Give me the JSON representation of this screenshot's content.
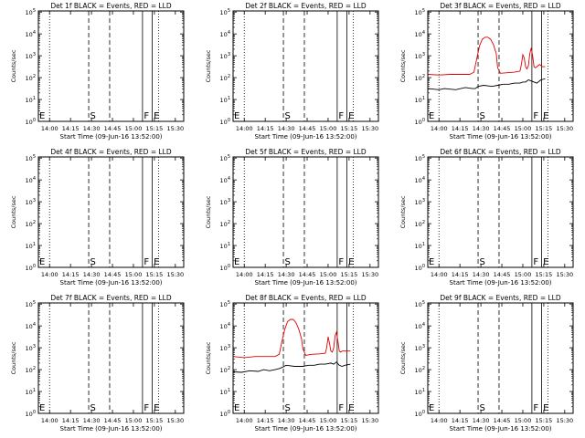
{
  "figure": {
    "background": "#ffffff",
    "frame_color": "#000000"
  },
  "common": {
    "ylabel": "Counts/sec",
    "xlabel": "Start Time (09-Jun-16 13:52:00)",
    "x_ticks": [
      {
        "t": 8,
        "label": "14:00"
      },
      {
        "t": 23,
        "label": "14:15"
      },
      {
        "t": 38,
        "label": "14:30"
      },
      {
        "t": 53,
        "label": "14:45"
      },
      {
        "t": 68,
        "label": "15:00"
      },
      {
        "t": 83,
        "label": "15:15"
      },
      {
        "t": 98,
        "label": "15:30"
      }
    ],
    "xlim": [
      0,
      104
    ],
    "y_tick_exponents": [
      0,
      1,
      2,
      3,
      4,
      5
    ],
    "y_tick_base": "10",
    "ylim_log10": [
      0,
      5.05
    ],
    "y_scale": "log",
    "vlines": [
      {
        "t": 8,
        "style": "dotted",
        "label": "E"
      },
      {
        "t": 36,
        "style": "dashed",
        "label": "S"
      },
      {
        "t": 51,
        "style": "dashed",
        "label": ""
      },
      {
        "t": 74.5,
        "style": "solid",
        "label": "F"
      },
      {
        "t": 81.5,
        "style": "solid",
        "label": "E"
      },
      {
        "t": 86,
        "style": "dotted",
        "label": ""
      }
    ],
    "series_colors": {
      "Events": "#000000",
      "LLD": "#e00000"
    }
  },
  "chart_data": [
    {
      "type": "line",
      "title": "Det 1f BLACK = Events, RED = LLD",
      "series": []
    },
    {
      "type": "line",
      "title": "Det 2f BLACK = Events, RED = LLD",
      "series": []
    },
    {
      "type": "line",
      "title": "Det 3f BLACK = Events, RED = LLD",
      "series": [
        {
          "name": "Events",
          "x": [
            0,
            8,
            12,
            20,
            27,
            32,
            34,
            36,
            40,
            46,
            50,
            54,
            58,
            62,
            66,
            68,
            70,
            72,
            74,
            76,
            78,
            81,
            84
          ],
          "y_log10": [
            1.5,
            1.45,
            1.5,
            1.45,
            1.55,
            1.5,
            1.5,
            1.6,
            1.65,
            1.6,
            1.65,
            1.7,
            1.7,
            1.75,
            1.75,
            1.8,
            1.8,
            1.9,
            1.85,
            1.8,
            1.75,
            1.9,
            1.95
          ]
        },
        {
          "name": "LLD",
          "x": [
            0,
            8,
            16,
            24,
            30,
            33,
            35,
            37,
            39,
            41,
            43,
            45,
            47,
            49,
            50,
            52,
            56,
            62,
            66,
            67,
            68,
            69,
            70,
            71,
            72,
            73,
            74,
            75,
            76,
            77,
            78,
            79,
            80,
            81,
            82,
            84
          ],
          "y_log10": [
            2.15,
            2.12,
            2.15,
            2.15,
            2.15,
            2.25,
            2.85,
            3.45,
            3.75,
            3.85,
            3.85,
            3.75,
            3.5,
            3.1,
            2.45,
            2.2,
            2.22,
            2.25,
            2.3,
            2.6,
            3.05,
            2.9,
            2.5,
            2.4,
            2.55,
            3.1,
            3.35,
            3.0,
            2.5,
            2.45,
            2.5,
            2.55,
            2.6,
            2.55,
            2.5,
            2.5
          ]
        }
      ]
    },
    {
      "type": "line",
      "title": "Det 4f BLACK = Events, RED = LLD",
      "series": []
    },
    {
      "type": "line",
      "title": "Det 5f BLACK = Events, RED = LLD",
      "series": []
    },
    {
      "type": "line",
      "title": "Det 6f BLACK = Events, RED = LLD",
      "series": []
    },
    {
      "type": "line",
      "title": "Det 7f BLACK = Events, RED = LLD",
      "series": []
    },
    {
      "type": "line",
      "title": "Det 8f BLACK = Events, RED = LLD",
      "series": [
        {
          "name": "Events",
          "x": [
            0,
            6,
            12,
            18,
            22,
            26,
            30,
            33,
            35,
            38,
            44,
            50,
            54,
            58,
            62,
            66,
            70,
            72,
            74,
            76,
            78,
            80,
            84
          ],
          "y_log10": [
            1.9,
            1.88,
            1.95,
            1.92,
            2.0,
            1.95,
            2.0,
            2.05,
            2.1,
            2.2,
            2.15,
            2.15,
            2.2,
            2.2,
            2.25,
            2.25,
            2.3,
            2.25,
            2.35,
            2.2,
            2.15,
            2.2,
            2.25
          ]
        },
        {
          "name": "LLD",
          "x": [
            0,
            8,
            16,
            24,
            30,
            33,
            35,
            37,
            39,
            41,
            43,
            45,
            47,
            49,
            50,
            52,
            56,
            62,
            66,
            67,
            68,
            69,
            70,
            71,
            72,
            73,
            74,
            75,
            76,
            77,
            78,
            80,
            84
          ],
          "y_log10": [
            2.6,
            2.55,
            2.6,
            2.6,
            2.6,
            2.7,
            3.3,
            3.85,
            4.2,
            4.3,
            4.3,
            4.15,
            3.85,
            3.4,
            2.95,
            2.65,
            2.7,
            2.72,
            2.75,
            3.0,
            3.5,
            3.2,
            2.85,
            2.8,
            3.0,
            3.55,
            3.7,
            3.3,
            2.85,
            2.8,
            2.85,
            2.85,
            2.85
          ]
        }
      ]
    },
    {
      "type": "line",
      "title": "Det 9f BLACK = Events, RED = LLD",
      "series": []
    }
  ]
}
